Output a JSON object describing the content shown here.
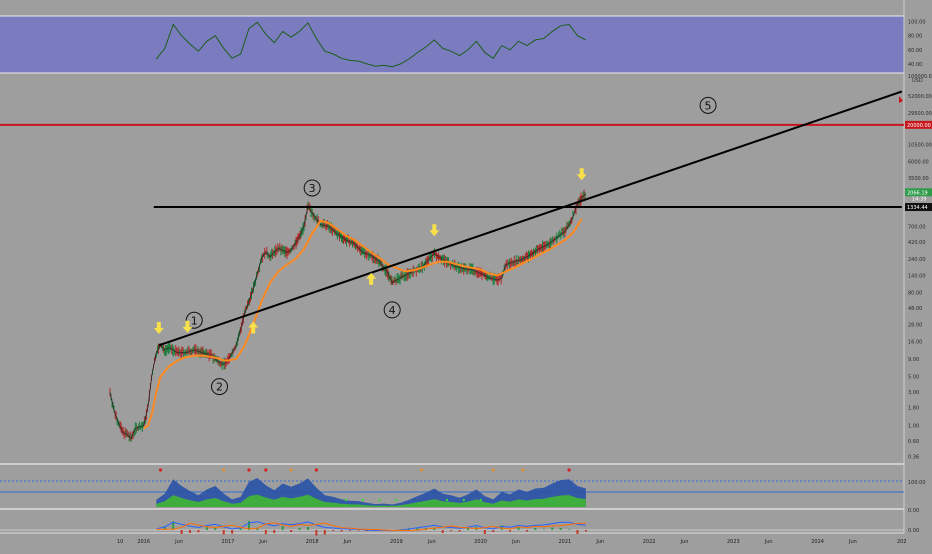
{
  "chart_data": [
    {
      "type": "line",
      "name": "price-panel",
      "scale": "log",
      "ylim": [
        0.3,
        100000
      ],
      "y_ticks": [
        "100000.00",
        "52000.00",
        "29500.00",
        "10500.00",
        "6000.00",
        "3500.00",
        "1350.00",
        "700.00",
        "420.00",
        "240.00",
        "140.00",
        "80.00",
        "48.00",
        "28.00",
        "16.00",
        "9.00",
        "5.00",
        "3.00",
        "1.80",
        "1.00",
        "0.60",
        "0.36"
      ],
      "price_labels": {
        "currency": "USD",
        "current": "2066.19",
        "current_sub": "14:39",
        "horizontal_level": "1334.44",
        "red_level": "20000.00"
      },
      "x_ticks": [
        "10",
        "2016",
        "Jun",
        "2017",
        "Jun",
        "2018",
        "Jun",
        "2019",
        "Jun",
        "2020",
        "Jun",
        "2021",
        "Jun",
        "2022",
        "Jun",
        "2023",
        "Jun",
        "2024",
        "Jun",
        "202"
      ],
      "x_tick_years": [
        2015.72,
        2016.0,
        2016.42,
        2017.0,
        2017.42,
        2018.0,
        2018.42,
        2019.0,
        2019.42,
        2020.0,
        2020.42,
        2021.0,
        2021.42,
        2022.0,
        2022.42,
        2023.0,
        2023.42,
        2024.0,
        2024.42,
        2025.0
      ],
      "price_series": {
        "x": [
          2015.6,
          2015.65,
          2015.7,
          2015.75,
          2015.8,
          2015.85,
          2015.9,
          2015.95,
          2016.0,
          2016.05,
          2016.1,
          2016.15,
          2016.2,
          2016.25,
          2016.3,
          2016.35,
          2016.4,
          2016.5,
          2016.6,
          2016.7,
          2016.8,
          2016.9,
          2016.95,
          2017.0,
          2017.1,
          2017.2,
          2017.3,
          2017.35,
          2017.4,
          2017.45,
          2017.5,
          2017.55,
          2017.6,
          2017.7,
          2017.75,
          2017.8,
          2017.85,
          2017.9,
          2017.95,
          2018.0,
          2018.05,
          2018.1,
          2018.2,
          2018.3,
          2018.4,
          2018.5,
          2018.6,
          2018.7,
          2018.8,
          2018.9,
          2018.95,
          2019.0,
          2019.1,
          2019.2,
          2019.3,
          2019.4,
          2019.45,
          2019.5,
          2019.6,
          2019.7,
          2019.8,
          2019.9,
          2020.0,
          2020.1,
          2020.2,
          2020.25,
          2020.3,
          2020.4,
          2020.5,
          2020.6,
          2020.7,
          2020.8,
          2020.9,
          2021.0,
          2021.05,
          2021.1,
          2021.15,
          2021.2,
          2021.25
        ],
        "y": [
          3,
          1.6,
          1.1,
          0.8,
          0.75,
          0.65,
          0.9,
          0.95,
          1.0,
          1.8,
          5.5,
          11,
          14,
          12,
          13,
          12,
          11,
          11,
          12,
          11,
          10,
          8,
          7.5,
          8.5,
          14,
          40,
          90,
          150,
          250,
          300,
          260,
          300,
          340,
          300,
          320,
          400,
          500,
          700,
          1350,
          1100,
          900,
          750,
          700,
          550,
          450,
          400,
          300,
          270,
          220,
          150,
          110,
          120,
          140,
          160,
          180,
          250,
          290,
          260,
          220,
          190,
          175,
          170,
          150,
          130,
          120,
          130,
          200,
          220,
          240,
          280,
          340,
          390,
          480,
          600,
          740,
          1000,
          1500,
          1800,
          2066
        ]
      },
      "ma_series": {
        "x": [
          2016.0,
          2016.05,
          2016.1,
          2016.15,
          2016.2,
          2016.3,
          2016.4,
          2016.5,
          2016.6,
          2016.7,
          2016.8,
          2016.9,
          2016.95,
          2017.0,
          2017.1,
          2017.2,
          2017.3,
          2017.4,
          2017.5,
          2017.6,
          2017.7,
          2017.8,
          2017.9,
          2018.0,
          2018.1,
          2018.2,
          2018.3,
          2018.4,
          2018.5,
          2018.6,
          2018.7,
          2018.8,
          2018.9,
          2019.0,
          2019.1,
          2019.2,
          2019.3,
          2019.4,
          2019.5,
          2019.6,
          2019.7,
          2019.8,
          2019.9,
          2020.0,
          2020.1,
          2020.2,
          2020.3,
          2020.4,
          2020.5,
          2020.6,
          2020.7,
          2020.8,
          2020.9,
          2021.0,
          2021.1,
          2021.2
        ],
        "y": [
          0.9,
          1.0,
          1.5,
          3.0,
          5.0,
          7.0,
          8.5,
          9.5,
          10,
          10,
          9.6,
          9,
          8.5,
          8.5,
          9,
          14,
          28,
          60,
          110,
          160,
          200,
          240,
          330,
          560,
          850,
          780,
          640,
          520,
          450,
          370,
          300,
          250,
          200,
          180,
          160,
          165,
          180,
          200,
          220,
          220,
          205,
          190,
          180,
          170,
          150,
          140,
          160,
          180,
          210,
          240,
          280,
          320,
          380,
          450,
          580,
          900
        ]
      },
      "trendline": {
        "x1": 2016.18,
        "y1": 14,
        "x2": 2025.0,
        "y2": 60000
      },
      "resistance_line": {
        "x1": 2016.12,
        "x2": 2025.0,
        "y": 1334.44
      },
      "red_line_y": 20000,
      "wave_labels": [
        {
          "text": "1",
          "x": 2016.6,
          "y": 32
        },
        {
          "text": "2",
          "x": 2016.9,
          "y": 3.6
        },
        {
          "text": "3",
          "x": 2018.0,
          "y": 2500
        },
        {
          "text": "4",
          "x": 2018.95,
          "y": 45
        },
        {
          "text": "5",
          "x": 2022.7,
          "y": 38000
        }
      ],
      "arrows": [
        {
          "dir": "down",
          "x": 2016.18,
          "y": 24
        },
        {
          "dir": "down",
          "x": 2016.52,
          "y": 25
        },
        {
          "dir": "up",
          "x": 2017.3,
          "y": 26
        },
        {
          "dir": "up",
          "x": 2018.7,
          "y": 130
        },
        {
          "dir": "down",
          "x": 2019.45,
          "y": 600
        },
        {
          "dir": "down",
          "x": 2021.2,
          "y": 3800
        }
      ]
    },
    {
      "type": "line",
      "name": "rsi-panel",
      "ylim": [
        30,
        105
      ],
      "y_ticks": [
        "100.00",
        "80.00",
        "60.00",
        "40.00"
      ],
      "x": [
        2016.15,
        2016.25,
        2016.35,
        2016.45,
        2016.55,
        2016.65,
        2016.75,
        2016.85,
        2016.95,
        2017.05,
        2017.15,
        2017.25,
        2017.35,
        2017.45,
        2017.55,
        2017.65,
        2017.75,
        2017.85,
        2017.95,
        2018.05,
        2018.15,
        2018.25,
        2018.35,
        2018.45,
        2018.55,
        2018.65,
        2018.75,
        2018.85,
        2018.95,
        2019.05,
        2019.15,
        2019.25,
        2019.35,
        2019.45,
        2019.55,
        2019.65,
        2019.75,
        2019.85,
        2019.95,
        2020.05,
        2020.15,
        2020.25,
        2020.35,
        2020.45,
        2020.55,
        2020.65,
        2020.75,
        2020.85,
        2020.95,
        2021.05,
        2021.15,
        2021.25
      ],
      "y": [
        47,
        62,
        96,
        80,
        68,
        58,
        72,
        80,
        62,
        48,
        54,
        90,
        99,
        82,
        70,
        86,
        78,
        86,
        98,
        76,
        58,
        54,
        48,
        45,
        44,
        40,
        37,
        38,
        36,
        40,
        47,
        56,
        64,
        74,
        62,
        58,
        52,
        60,
        72,
        56,
        48,
        66,
        60,
        72,
        66,
        74,
        76,
        86,
        94,
        96,
        80,
        74
      ]
    },
    {
      "type": "area",
      "name": "oscillator-panel",
      "y_ticks": [
        "100.00",
        "0.00"
      ],
      "markers": {
        "orange_x": [
          2016.2,
          2016.95,
          2017.25,
          2017.45,
          2017.75,
          2018.05,
          2019.3,
          2020.15,
          2020.5
        ],
        "red_x": [
          2016.2,
          2017.25,
          2017.45,
          2018.05,
          2021.05
        ],
        "green_x": [
          2018.4,
          2018.6,
          2018.8,
          2019.0,
          2019.6,
          2019.8,
          2020.0
        ]
      }
    },
    {
      "type": "line",
      "name": "macd-panel",
      "y_ticks": [
        "0.00"
      ]
    }
  ]
}
